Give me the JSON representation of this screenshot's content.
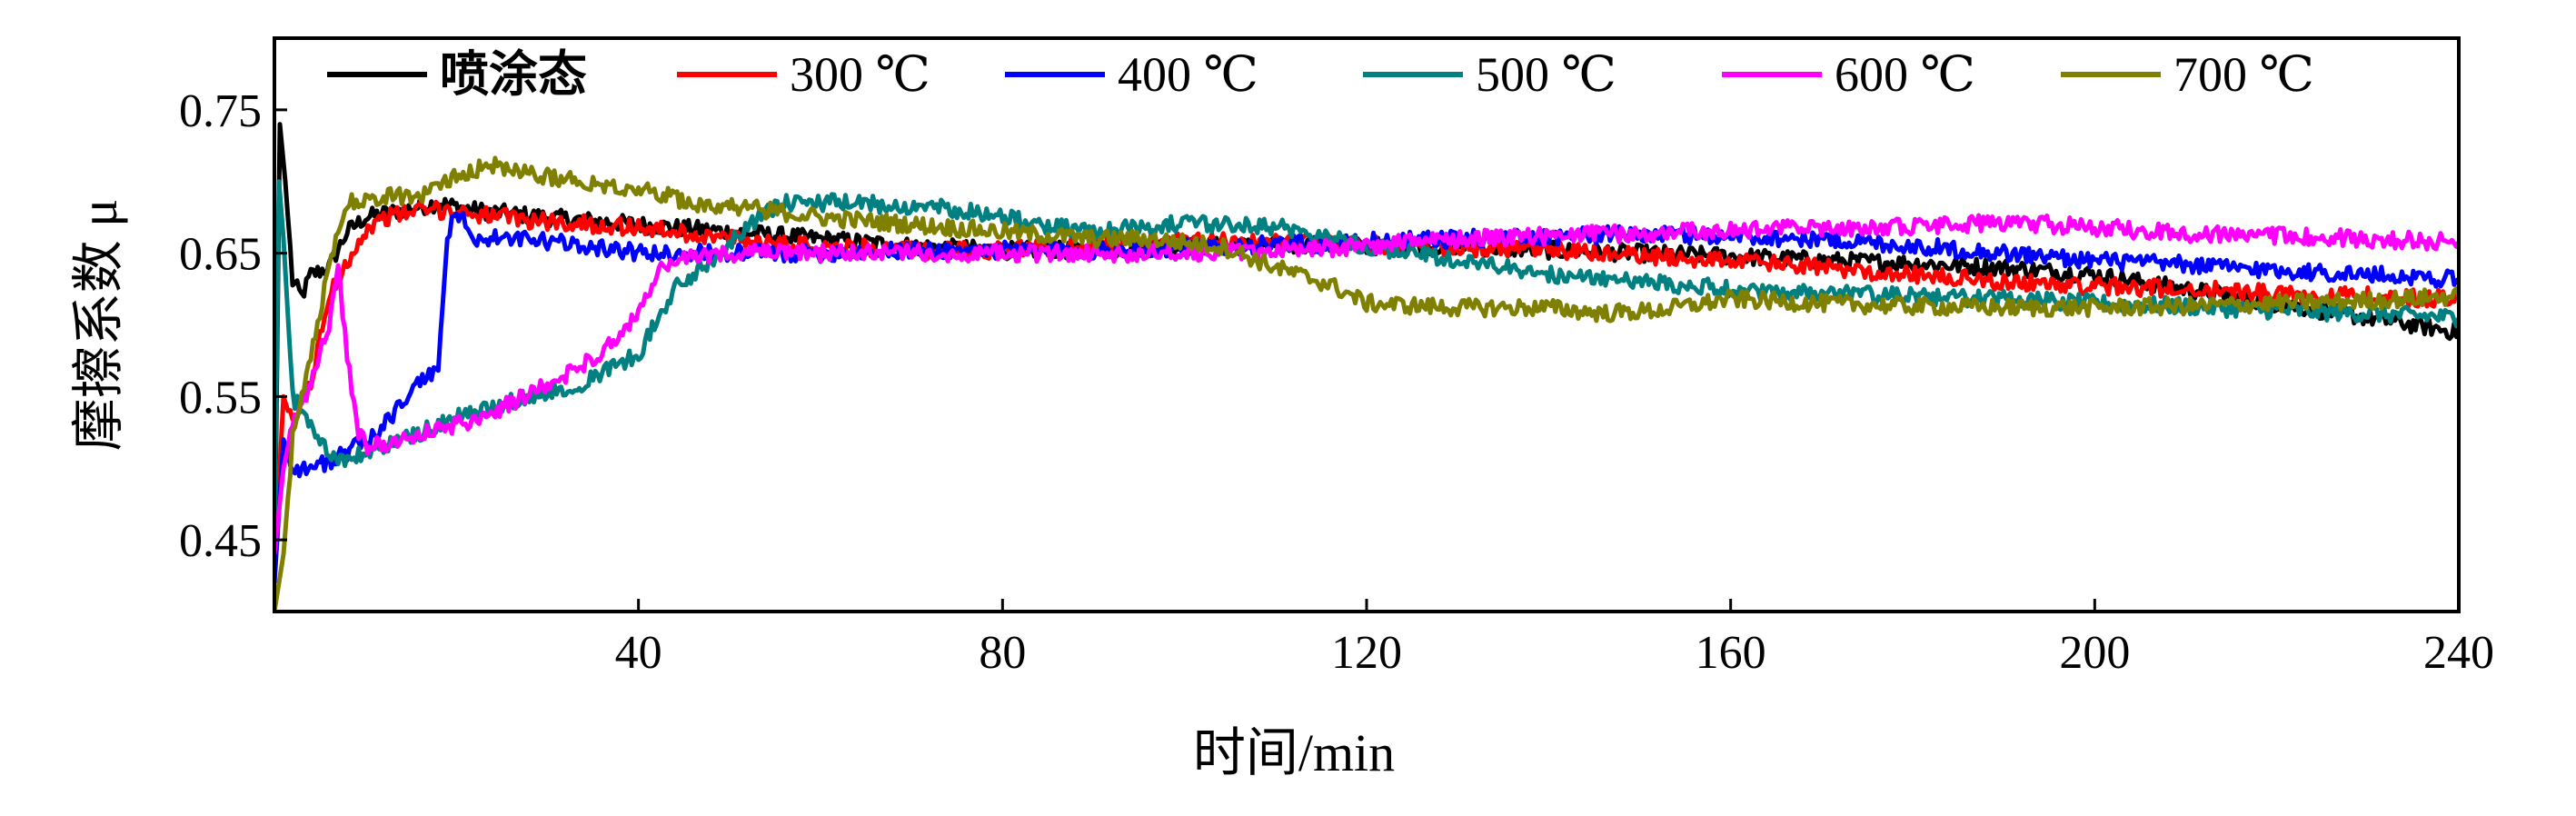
{
  "chart_data": {
    "type": "line",
    "xlabel": "时间/min",
    "ylabel": "摩擦系数 μ",
    "xlim": [
      0,
      240
    ],
    "ylim": [
      0.4,
      0.8
    ],
    "xticks": [
      40,
      80,
      120,
      160,
      200,
      240
    ],
    "yticks": [
      0.45,
      0.55,
      0.65,
      0.75
    ],
    "ytick_labels": [
      "0.45",
      "0.55",
      "0.65",
      "0.75"
    ],
    "xtick_labels": [
      "40",
      "80",
      "120",
      "160",
      "200",
      "240"
    ],
    "grid": false,
    "legend_position": "top",
    "series": [
      {
        "name": "喷涂态",
        "color": "#000000",
        "points": [
          [
            0,
            0.42
          ],
          [
            0.6,
            0.74
          ],
          [
            1.2,
            0.7
          ],
          [
            2,
            0.63
          ],
          [
            3,
            0.62
          ],
          [
            4,
            0.635
          ],
          [
            6,
            0.64
          ],
          [
            8,
            0.665
          ],
          [
            10,
            0.675
          ],
          [
            14,
            0.68
          ],
          [
            18,
            0.685
          ],
          [
            22,
            0.68
          ],
          [
            30,
            0.675
          ],
          [
            40,
            0.67
          ],
          [
            50,
            0.665
          ],
          [
            60,
            0.66
          ],
          [
            70,
            0.655
          ],
          [
            80,
            0.652
          ],
          [
            90,
            0.652
          ],
          [
            100,
            0.655
          ],
          [
            110,
            0.655
          ],
          [
            120,
            0.655
          ],
          [
            130,
            0.655
          ],
          [
            140,
            0.652
          ],
          [
            150,
            0.65
          ],
          [
            160,
            0.648
          ],
          [
            170,
            0.645
          ],
          [
            180,
            0.643
          ],
          [
            190,
            0.64
          ],
          [
            200,
            0.635
          ],
          [
            210,
            0.625
          ],
          [
            220,
            0.615
          ],
          [
            230,
            0.605
          ],
          [
            240,
            0.595
          ]
        ]
      },
      {
        "name": "300 ℃",
        "color": "#ff0000",
        "points": [
          [
            0,
            0.43
          ],
          [
            1,
            0.55
          ],
          [
            2,
            0.53
          ],
          [
            4,
            0.56
          ],
          [
            6,
            0.62
          ],
          [
            8,
            0.645
          ],
          [
            10,
            0.665
          ],
          [
            12,
            0.675
          ],
          [
            16,
            0.68
          ],
          [
            20,
            0.68
          ],
          [
            25,
            0.675
          ],
          [
            30,
            0.672
          ],
          [
            40,
            0.668
          ],
          [
            50,
            0.66
          ],
          [
            60,
            0.655
          ],
          [
            70,
            0.652
          ],
          [
            80,
            0.652
          ],
          [
            90,
            0.655
          ],
          [
            100,
            0.658
          ],
          [
            110,
            0.658
          ],
          [
            120,
            0.656
          ],
          [
            130,
            0.654
          ],
          [
            140,
            0.652
          ],
          [
            150,
            0.648
          ],
          [
            160,
            0.645
          ],
          [
            170,
            0.64
          ],
          [
            180,
            0.635
          ],
          [
            190,
            0.63
          ],
          [
            200,
            0.627
          ],
          [
            210,
            0.625
          ],
          [
            220,
            0.622
          ],
          [
            230,
            0.62
          ],
          [
            240,
            0.618
          ]
        ]
      },
      {
        "name": "400 ℃",
        "color": "#0000ff",
        "points": [
          [
            0,
            0.42
          ],
          [
            1,
            0.52
          ],
          [
            2,
            0.5
          ],
          [
            4,
            0.5
          ],
          [
            6,
            0.505
          ],
          [
            8,
            0.51
          ],
          [
            10,
            0.52
          ],
          [
            12,
            0.53
          ],
          [
            14,
            0.545
          ],
          [
            16,
            0.56
          ],
          [
            18,
            0.57
          ],
          [
            19,
            0.66
          ],
          [
            20,
            0.68
          ],
          [
            22,
            0.66
          ],
          [
            26,
            0.66
          ],
          [
            30,
            0.658
          ],
          [
            35,
            0.655
          ],
          [
            40,
            0.65
          ],
          [
            50,
            0.65
          ],
          [
            60,
            0.65
          ],
          [
            70,
            0.652
          ],
          [
            80,
            0.652
          ],
          [
            90,
            0.652
          ],
          [
            100,
            0.654
          ],
          [
            110,
            0.656
          ],
          [
            120,
            0.658
          ],
          [
            130,
            0.66
          ],
          [
            140,
            0.662
          ],
          [
            150,
            0.663
          ],
          [
            160,
            0.662
          ],
          [
            170,
            0.66
          ],
          [
            180,
            0.655
          ],
          [
            190,
            0.65
          ],
          [
            200,
            0.645
          ],
          [
            210,
            0.642
          ],
          [
            220,
            0.638
          ],
          [
            230,
            0.635
          ],
          [
            240,
            0.632
          ]
        ]
      },
      {
        "name": "500 ℃",
        "color": "#008080",
        "points": [
          [
            0,
            0.45
          ],
          [
            0.5,
            0.7
          ],
          [
            1,
            0.66
          ],
          [
            2,
            0.55
          ],
          [
            4,
            0.53
          ],
          [
            6,
            0.51
          ],
          [
            8,
            0.505
          ],
          [
            10,
            0.51
          ],
          [
            14,
            0.52
          ],
          [
            20,
            0.535
          ],
          [
            28,
            0.55
          ],
          [
            34,
            0.56
          ],
          [
            40,
            0.58
          ],
          [
            44,
            0.625
          ],
          [
            48,
            0.645
          ],
          [
            52,
            0.67
          ],
          [
            56,
            0.685
          ],
          [
            62,
            0.685
          ],
          [
            70,
            0.683
          ],
          [
            76,
            0.68
          ],
          [
            84,
            0.67
          ],
          [
            90,
            0.665
          ],
          [
            96,
            0.67
          ],
          [
            102,
            0.67
          ],
          [
            108,
            0.67
          ],
          [
            114,
            0.665
          ],
          [
            120,
            0.655
          ],
          [
            130,
            0.645
          ],
          [
            140,
            0.635
          ],
          [
            150,
            0.63
          ],
          [
            160,
            0.625
          ],
          [
            170,
            0.622
          ],
          [
            180,
            0.62
          ],
          [
            190,
            0.618
          ],
          [
            200,
            0.615
          ],
          [
            210,
            0.613
          ],
          [
            220,
            0.61
          ],
          [
            230,
            0.608
          ],
          [
            240,
            0.605
          ]
        ]
      },
      {
        "name": "600 ℃",
        "color": "#ff00ff",
        "points": [
          [
            0,
            0.44
          ],
          [
            1,
            0.5
          ],
          [
            2,
            0.53
          ],
          [
            4,
            0.56
          ],
          [
            6,
            0.6
          ],
          [
            7,
            0.64
          ],
          [
            8,
            0.58
          ],
          [
            9,
            0.53
          ],
          [
            10,
            0.515
          ],
          [
            14,
            0.52
          ],
          [
            20,
            0.53
          ],
          [
            26,
            0.545
          ],
          [
            32,
            0.565
          ],
          [
            38,
            0.59
          ],
          [
            40,
            0.61
          ],
          [
            42,
            0.635
          ],
          [
            44,
            0.645
          ],
          [
            50,
            0.65
          ],
          [
            60,
            0.65
          ],
          [
            70,
            0.65
          ],
          [
            80,
            0.65
          ],
          [
            90,
            0.65
          ],
          [
            100,
            0.65
          ],
          [
            110,
            0.652
          ],
          [
            120,
            0.655
          ],
          [
            130,
            0.66
          ],
          [
            140,
            0.662
          ],
          [
            150,
            0.664
          ],
          [
            160,
            0.666
          ],
          [
            170,
            0.668
          ],
          [
            180,
            0.668
          ],
          [
            190,
            0.672
          ],
          [
            200,
            0.668
          ],
          [
            210,
            0.664
          ],
          [
            220,
            0.662
          ],
          [
            230,
            0.66
          ],
          [
            240,
            0.658
          ]
        ]
      },
      {
        "name": "700 ℃",
        "color": "#808000",
        "points": [
          [
            0,
            0.4
          ],
          [
            1,
            0.44
          ],
          [
            2,
            0.52
          ],
          [
            4,
            0.58
          ],
          [
            6,
            0.64
          ],
          [
            8,
            0.685
          ],
          [
            12,
            0.69
          ],
          [
            16,
            0.69
          ],
          [
            20,
            0.705
          ],
          [
            24,
            0.712
          ],
          [
            28,
            0.705
          ],
          [
            34,
            0.7
          ],
          [
            40,
            0.695
          ],
          [
            46,
            0.685
          ],
          [
            52,
            0.682
          ],
          [
            60,
            0.675
          ],
          [
            70,
            0.67
          ],
          [
            80,
            0.665
          ],
          [
            90,
            0.66
          ],
          [
            96,
            0.66
          ],
          [
            104,
            0.655
          ],
          [
            110,
            0.64
          ],
          [
            116,
            0.628
          ],
          [
            120,
            0.615
          ],
          [
            130,
            0.612
          ],
          [
            140,
            0.612
          ],
          [
            146,
            0.608
          ],
          [
            152,
            0.61
          ],
          [
            160,
            0.618
          ],
          [
            170,
            0.615
          ],
          [
            180,
            0.613
          ],
          [
            190,
            0.612
          ],
          [
            200,
            0.612
          ],
          [
            210,
            0.613
          ],
          [
            220,
            0.615
          ],
          [
            230,
            0.617
          ],
          [
            240,
            0.62
          ]
        ]
      }
    ]
  }
}
